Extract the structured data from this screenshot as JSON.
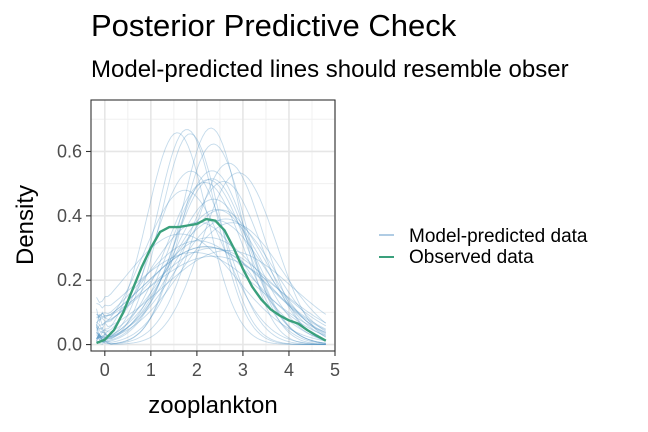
{
  "title": "Posterior Predictive Check",
  "subtitle": "Model-predicted lines should resemble obser",
  "chart_data": {
    "type": "line",
    "xlabel": "zooplankton",
    "ylabel": "Density",
    "xlim": [
      -0.3,
      5.0
    ],
    "ylim": [
      -0.02,
      0.76
    ],
    "xticks": [
      0,
      1,
      2,
      3,
      4,
      5
    ],
    "yticks": [
      0.0,
      0.2,
      0.4,
      0.6
    ],
    "ytick_labels": [
      "0.0",
      "0.2",
      "0.4",
      "0.6"
    ],
    "grid": true,
    "legend_position": "right",
    "colors": {
      "predicted": "#4b8fc2",
      "observed": "#3aa07c"
    },
    "series": [
      {
        "name": "Observed data",
        "x": [
          -0.18,
          0.0,
          0.2,
          0.4,
          0.6,
          0.8,
          1.0,
          1.2,
          1.4,
          1.6,
          1.8,
          2.0,
          2.2,
          2.4,
          2.6,
          2.8,
          3.0,
          3.2,
          3.4,
          3.6,
          3.8,
          4.0,
          4.2,
          4.4,
          4.6,
          4.8
        ],
        "values": [
          0.005,
          0.015,
          0.045,
          0.1,
          0.17,
          0.24,
          0.3,
          0.35,
          0.365,
          0.365,
          0.37,
          0.375,
          0.39,
          0.385,
          0.355,
          0.3,
          0.235,
          0.18,
          0.14,
          0.11,
          0.09,
          0.075,
          0.065,
          0.045,
          0.028,
          0.012
        ]
      }
    ],
    "predicted_draws": {
      "name": "Model-predicted data",
      "count": 30,
      "peak_range": [
        0.28,
        0.72
      ]
    },
    "legend": [
      "Model-predicted data",
      "Observed data"
    ]
  }
}
